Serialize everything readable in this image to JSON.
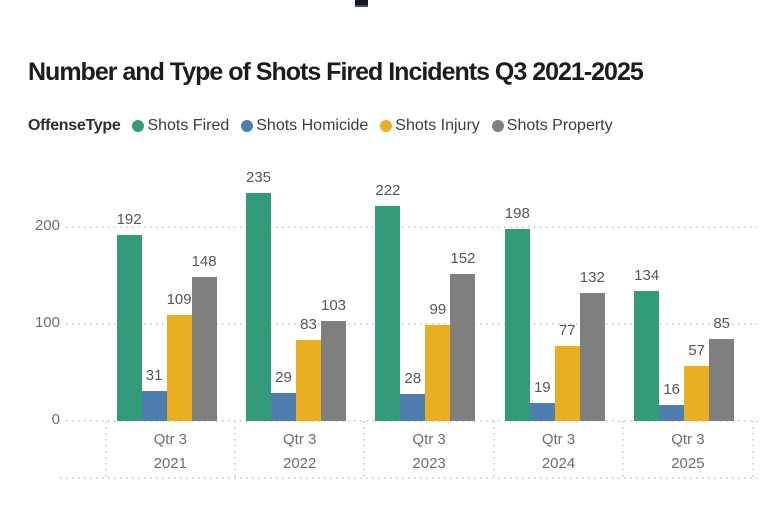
{
  "title": "Number and Type of Shots Fired Incidents Q3 2021-2025",
  "legend": {
    "label": "OffenseType",
    "items": [
      {
        "name": "Shots Fired",
        "color": "#339a7a"
      },
      {
        "name": "Shots Homicide",
        "color": "#4e7db0"
      },
      {
        "name": "Shots Injury",
        "color": "#e9af20"
      },
      {
        "name": "Shots Property",
        "color": "#7f7f7f"
      }
    ]
  },
  "chart_data": {
    "type": "bar",
    "title": "Number and Type of Shots Fired Incidents Q3 2021-2025",
    "categories": [
      "Qtr 3 2021",
      "Qtr 3 2022",
      "Qtr 3 2023",
      "Qtr 3 2024",
      "Qtr 3 2025"
    ],
    "x_axis": {
      "quarter": "Qtr 3",
      "years": [
        "2021",
        "2022",
        "2023",
        "2024",
        "2025"
      ]
    },
    "series": [
      {
        "name": "Shots Fired",
        "color": "#339a7a",
        "values": [
          192,
          235,
          222,
          198,
          134
        ]
      },
      {
        "name": "Shots Homicide",
        "color": "#4e7db0",
        "values": [
          31,
          29,
          28,
          19,
          16
        ]
      },
      {
        "name": "Shots Injury",
        "color": "#e9af20",
        "values": [
          109,
          83,
          99,
          77,
          57
        ]
      },
      {
        "name": "Shots Property",
        "color": "#7f7f7f",
        "values": [
          148,
          103,
          152,
          132,
          85
        ]
      }
    ],
    "y_axis": {
      "ticks": [
        0,
        100,
        200
      ],
      "min": 0,
      "max": 250
    },
    "data_labels": true,
    "grid": "dotted-horizontal",
    "legend_position": "top"
  }
}
